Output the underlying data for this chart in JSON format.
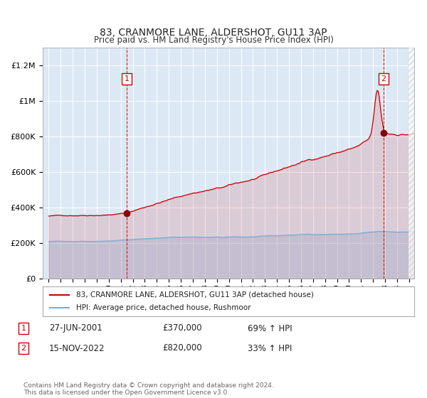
{
  "title": "83, CRANMORE LANE, ALDERSHOT, GU11 3AP",
  "subtitle": "Price paid vs. HM Land Registry's House Price Index (HPI)",
  "background_color": "#dce9f5",
  "fig_bg_color": "#ffffff",
  "red_line_color": "#cc0000",
  "blue_line_color": "#7aaed6",
  "marker_color": "#880000",
  "sale1_year": 2001.49,
  "sale2_year": 2022.88,
  "sale1_price": 370000,
  "sale2_price": 820000,
  "ylim_max": 1300000,
  "annotation1_date": "27-JUN-2001",
  "annotation1_price": "£370,000",
  "annotation1_hpi": "69% ↑ HPI",
  "annotation2_date": "15-NOV-2022",
  "annotation2_price": "£820,000",
  "annotation2_hpi": "33% ↑ HPI",
  "footer_text": "Contains HM Land Registry data © Crown copyright and database right 2024.\nThis data is licensed under the Open Government Licence v3.0.",
  "legend_red": "83, CRANMORE LANE, ALDERSHOT, GU11 3AP (detached house)",
  "legend_blue": "HPI: Average price, detached house, Rushmoor"
}
